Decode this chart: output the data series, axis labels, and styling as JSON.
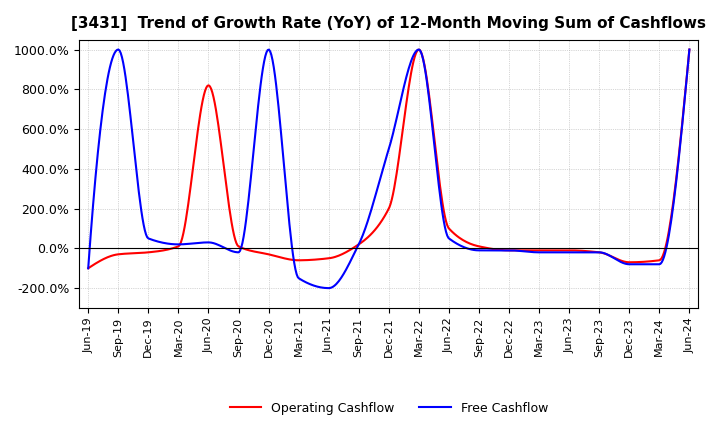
{
  "title": "[3431]  Trend of Growth Rate (YoY) of 12-Month Moving Sum of Cashflows",
  "ylim": [
    -300,
    1050
  ],
  "yticks": [
    -200,
    0,
    200,
    400,
    600,
    800,
    1000
  ],
  "ytick_labels": [
    "-200.0%",
    "0.0%",
    "200.0%",
    "400.0%",
    "600.0%",
    "800.0%",
    "1000.0%"
  ],
  "background_color": "#ffffff",
  "grid_color": "#b0b0b0",
  "operating_color": "#ff0000",
  "free_color": "#0000ff",
  "legend_operating": "Operating Cashflow",
  "legend_free": "Free Cashflow",
  "x_labels": [
    "Jun-19",
    "Sep-19",
    "Dec-19",
    "Mar-20",
    "Jun-20",
    "Sep-20",
    "Dec-20",
    "Mar-21",
    "Jun-21",
    "Sep-21",
    "Dec-21",
    "Mar-22",
    "Jun-22",
    "Sep-22",
    "Dec-22",
    "Mar-23",
    "Jun-23",
    "Sep-23",
    "Dec-23",
    "Mar-24",
    "Jun-24"
  ],
  "operating_cashflow": [
    -100,
    -30,
    -20,
    10,
    820,
    10,
    -30,
    -60,
    -50,
    20,
    200,
    1000,
    100,
    10,
    -10,
    -10,
    -10,
    -20,
    -70,
    -60,
    1000
  ],
  "free_cashflow": [
    -100,
    1000,
    50,
    20,
    30,
    -20,
    1000,
    -150,
    -200,
    20,
    500,
    1000,
    50,
    -10,
    -10,
    -20,
    -20,
    -20,
    -80,
    -80,
    1000
  ]
}
